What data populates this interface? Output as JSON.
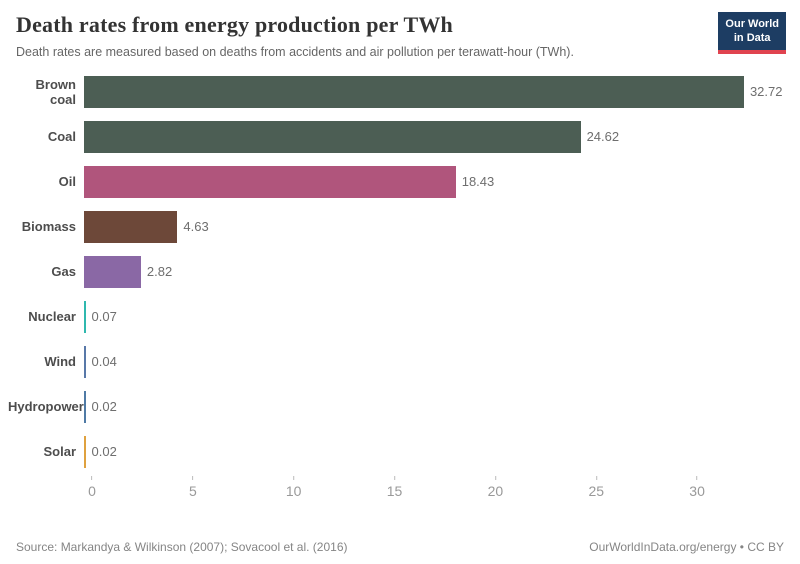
{
  "header": {
    "title": "Death rates from energy production per TWh",
    "subtitle": "Death rates are measured based on deaths from accidents and air pollution per terawatt-hour (TWh).",
    "logo": {
      "line1": "Our World",
      "line2": "in Data",
      "bg_color": "#1d3d63",
      "accent_color": "#e0434f"
    }
  },
  "chart_data": {
    "type": "bar",
    "orientation": "horizontal",
    "title": "Death rates from energy production per TWh",
    "xlabel": "",
    "ylabel": "",
    "categories": [
      "Brown coal",
      "Coal",
      "Oil",
      "Biomass",
      "Gas",
      "Nuclear",
      "Wind",
      "Hydropower",
      "Solar"
    ],
    "values": [
      32.72,
      24.62,
      18.43,
      4.63,
      2.82,
      0.07,
      0.04,
      0.02,
      0.02
    ],
    "value_labels": [
      "32.72",
      "24.62",
      "18.43",
      "4.63",
      "2.82",
      "0.07",
      "0.04",
      "0.02",
      "0.02"
    ],
    "colors": [
      "#4c5e54",
      "#4c5e54",
      "#b0557c",
      "#6d4839",
      "#8a68a5",
      "#2fb8ae",
      "#5878a8",
      "#4f7aa5",
      "#dfa13f"
    ],
    "x_ticks": [
      0,
      5,
      10,
      15,
      20,
      25,
      30
    ],
    "xlim": [
      0,
      33
    ],
    "grid": false,
    "legend": false
  },
  "footer": {
    "source": "Source: Markandya & Wilkinson (2007); Sovacool et al. (2016)",
    "license": "OurWorldInData.org/energy • CC BY"
  }
}
